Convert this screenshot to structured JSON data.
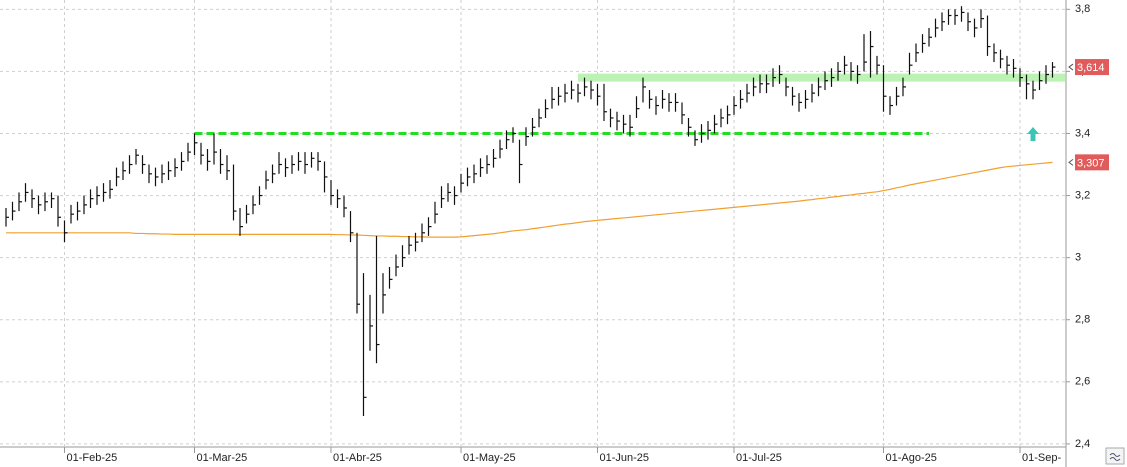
{
  "chart_data": {
    "type": "ohlc",
    "categories": [
      null,
      null,
      null,
      null,
      null,
      null,
      null,
      null,
      null,
      "01-Feb-25",
      null,
      null,
      null,
      null,
      null,
      null,
      null,
      null,
      null,
      null,
      null,
      null,
      null,
      null,
      null,
      null,
      null,
      null,
      null,
      "01-Mar-25",
      null,
      null,
      null,
      null,
      null,
      null,
      null,
      null,
      null,
      null,
      null,
      null,
      null,
      null,
      null,
      null,
      null,
      null,
      null,
      null,
      "01-Abr-25",
      null,
      null,
      null,
      null,
      null,
      null,
      null,
      null,
      null,
      null,
      null,
      null,
      null,
      null,
      null,
      null,
      null,
      null,
      null,
      "01-May-25",
      null,
      null,
      null,
      null,
      null,
      null,
      null,
      null,
      null,
      null,
      null,
      null,
      null,
      null,
      null,
      null,
      null,
      null,
      null,
      null,
      "01-Jun-25",
      null,
      null,
      null,
      null,
      null,
      null,
      null,
      null,
      null,
      null,
      null,
      null,
      null,
      null,
      null,
      null,
      null,
      null,
      null,
      null,
      "01-Jul-25",
      null,
      null,
      null,
      null,
      null,
      null,
      null,
      null,
      null,
      null,
      null,
      null,
      null,
      null,
      null,
      null,
      null,
      null,
      null,
      null,
      null,
      null,
      "01-Ago-25",
      null,
      null,
      null,
      null,
      null,
      null,
      null,
      null,
      null,
      null,
      null,
      null,
      null,
      null,
      null,
      null,
      null,
      null,
      null,
      null,
      "01-Sep-",
      null,
      null,
      null,
      null,
      null
    ],
    "close": [
      3.13,
      3.15,
      3.18,
      3.21,
      3.19,
      3.17,
      3.18,
      3.19,
      3.13,
      3.08,
      3.14,
      3.15,
      3.17,
      3.19,
      3.2,
      3.21,
      3.22,
      3.26,
      3.28,
      3.3,
      3.33,
      3.3,
      3.27,
      3.26,
      3.27,
      3.28,
      3.29,
      3.31,
      3.34,
      3.37,
      3.33,
      3.31,
      3.34,
      3.3,
      3.28,
      3.15,
      3.1,
      3.14,
      3.17,
      3.2,
      3.25,
      3.27,
      3.3,
      3.29,
      3.3,
      3.31,
      3.3,
      3.32,
      3.31,
      3.26,
      3.2,
      3.19,
      3.16,
      3.08,
      2.85,
      2.55,
      2.78,
      2.72,
      2.88,
      2.93,
      2.97,
      3.0,
      3.04,
      3.05,
      3.08,
      3.1,
      3.14,
      3.19,
      3.21,
      3.2,
      3.24,
      3.26,
      3.27,
      3.29,
      3.3,
      3.32,
      3.35,
      3.38,
      3.4,
      3.3,
      3.39,
      3.42,
      3.45,
      3.48,
      3.51,
      3.52,
      3.53,
      3.54,
      3.53,
      3.55,
      3.54,
      3.52,
      3.47,
      3.45,
      3.44,
      3.43,
      3.42,
      3.48,
      3.55,
      3.51,
      3.49,
      3.51,
      3.5,
      3.5,
      3.46,
      3.42,
      3.38,
      3.4,
      3.41,
      3.43,
      3.45,
      3.46,
      3.49,
      3.51,
      3.53,
      3.55,
      3.56,
      3.56,
      3.58,
      3.59,
      3.55,
      3.52,
      3.5,
      3.51,
      3.53,
      3.55,
      3.57,
      3.58,
      3.6,
      3.62,
      3.6,
      3.59,
      3.63,
      3.68,
      3.62,
      3.52,
      3.49,
      3.52,
      3.55,
      3.62,
      3.66,
      3.69,
      3.71,
      3.74,
      3.76,
      3.78,
      3.78,
      3.79,
      3.76,
      3.74,
      3.77,
      3.68,
      3.66,
      3.64,
      3.62,
      3.61,
      3.58,
      3.56,
      3.54,
      3.57,
      3.59,
      3.614
    ],
    "high": [
      3.16,
      3.18,
      3.21,
      3.24,
      3.22,
      3.2,
      3.21,
      3.21,
      3.2,
      3.12,
      3.17,
      3.18,
      3.2,
      3.22,
      3.23,
      3.24,
      3.25,
      3.29,
      3.31,
      3.33,
      3.35,
      3.33,
      3.3,
      3.29,
      3.3,
      3.31,
      3.32,
      3.34,
      3.37,
      3.4,
      3.37,
      3.35,
      3.4,
      3.35,
      3.33,
      3.3,
      3.16,
      3.17,
      3.2,
      3.23,
      3.28,
      3.3,
      3.34,
      3.32,
      3.33,
      3.34,
      3.34,
      3.34,
      3.34,
      3.31,
      3.25,
      3.22,
      3.2,
      3.15,
      3.08,
      2.95,
      2.88,
      3.07,
      2.95,
      2.97,
      3.01,
      3.04,
      3.07,
      3.08,
      3.11,
      3.13,
      3.18,
      3.23,
      3.24,
      3.23,
      3.27,
      3.29,
      3.3,
      3.32,
      3.33,
      3.35,
      3.38,
      3.41,
      3.42,
      3.38,
      3.42,
      3.45,
      3.48,
      3.51,
      3.55,
      3.55,
      3.56,
      3.57,
      3.56,
      3.58,
      3.57,
      3.56,
      3.56,
      3.48,
      3.47,
      3.46,
      3.46,
      3.52,
      3.58,
      3.54,
      3.52,
      3.54,
      3.53,
      3.53,
      3.5,
      3.45,
      3.41,
      3.43,
      3.44,
      3.46,
      3.48,
      3.49,
      3.52,
      3.54,
      3.56,
      3.58,
      3.59,
      3.59,
      3.61,
      3.62,
      3.58,
      3.55,
      3.53,
      3.54,
      3.56,
      3.58,
      3.6,
      3.61,
      3.63,
      3.65,
      3.63,
      3.62,
      3.72,
      3.73,
      3.65,
      3.62,
      3.52,
      3.55,
      3.58,
      3.66,
      3.69,
      3.72,
      3.74,
      3.77,
      3.79,
      3.8,
      3.8,
      3.81,
      3.79,
      3.77,
      3.8,
      3.78,
      3.69,
      3.67,
      3.65,
      3.64,
      3.61,
      3.59,
      3.57,
      3.6,
      3.62,
      3.63
    ],
    "low": [
      3.1,
      3.12,
      3.15,
      3.18,
      3.16,
      3.14,
      3.15,
      3.16,
      3.1,
      3.05,
      3.11,
      3.12,
      3.14,
      3.16,
      3.17,
      3.18,
      3.19,
      3.23,
      3.25,
      3.27,
      3.3,
      3.27,
      3.24,
      3.23,
      3.24,
      3.25,
      3.26,
      3.28,
      3.31,
      3.33,
      3.3,
      3.28,
      3.3,
      3.27,
      3.25,
      3.12,
      3.07,
      3.11,
      3.14,
      3.17,
      3.22,
      3.24,
      3.27,
      3.26,
      3.27,
      3.28,
      3.27,
      3.29,
      3.28,
      3.21,
      3.17,
      3.16,
      3.13,
      3.05,
      2.82,
      2.49,
      2.7,
      2.66,
      2.82,
      2.9,
      2.94,
      2.97,
      3.01,
      3.02,
      3.05,
      3.07,
      3.11,
      3.16,
      3.18,
      3.17,
      3.21,
      3.23,
      3.24,
      3.26,
      3.27,
      3.29,
      3.32,
      3.35,
      3.37,
      3.24,
      3.36,
      3.39,
      3.42,
      3.45,
      3.48,
      3.49,
      3.5,
      3.51,
      3.5,
      3.52,
      3.51,
      3.49,
      3.44,
      3.42,
      3.41,
      3.4,
      3.39,
      3.45,
      3.5,
      3.48,
      3.46,
      3.48,
      3.47,
      3.47,
      3.43,
      3.39,
      3.36,
      3.37,
      3.38,
      3.4,
      3.42,
      3.43,
      3.46,
      3.48,
      3.5,
      3.52,
      3.53,
      3.53,
      3.55,
      3.56,
      3.52,
      3.49,
      3.47,
      3.48,
      3.5,
      3.52,
      3.54,
      3.55,
      3.57,
      3.59,
      3.57,
      3.56,
      3.6,
      3.58,
      3.59,
      3.47,
      3.46,
      3.49,
      3.52,
      3.59,
      3.63,
      3.66,
      3.68,
      3.71,
      3.73,
      3.75,
      3.75,
      3.76,
      3.73,
      3.71,
      3.74,
      3.65,
      3.63,
      3.61,
      3.59,
      3.58,
      3.55,
      3.51,
      3.51,
      3.54,
      3.56,
      3.58
    ],
    "bar_color": "#111111",
    "moving_average": {
      "color": "#f0a030",
      "values": [
        3.08,
        3.08,
        3.08,
        3.08,
        3.08,
        3.08,
        3.08,
        3.08,
        3.08,
        3.08,
        3.08,
        3.08,
        3.08,
        3.08,
        3.08,
        3.08,
        3.08,
        3.08,
        3.08,
        3.08,
        3.078,
        3.078,
        3.077,
        3.077,
        3.076,
        3.076,
        3.075,
        3.075,
        3.075,
        3.075,
        3.075,
        3.075,
        3.075,
        3.075,
        3.075,
        3.075,
        3.075,
        3.075,
        3.075,
        3.075,
        3.075,
        3.075,
        3.075,
        3.075,
        3.075,
        3.075,
        3.075,
        3.075,
        3.075,
        3.075,
        3.075,
        3.074,
        3.074,
        3.073,
        3.073,
        3.072,
        3.071,
        3.07,
        3.07,
        3.069,
        3.069,
        3.068,
        3.068,
        3.067,
        3.067,
        3.066,
        3.066,
        3.066,
        3.066,
        3.066,
        3.067,
        3.069,
        3.071,
        3.073,
        3.075,
        3.077,
        3.08,
        3.083,
        3.086,
        3.088,
        3.09,
        3.093,
        3.096,
        3.099,
        3.102,
        3.105,
        3.108,
        3.11,
        3.113,
        3.116,
        3.118,
        3.12,
        3.122,
        3.124,
        3.126,
        3.128,
        3.13,
        3.132,
        3.134,
        3.136,
        3.138,
        3.14,
        3.142,
        3.144,
        3.146,
        3.148,
        3.15,
        3.152,
        3.154,
        3.156,
        3.158,
        3.16,
        3.162,
        3.164,
        3.166,
        3.168,
        3.17,
        3.172,
        3.174,
        3.176,
        3.178,
        3.18,
        3.182,
        3.185,
        3.187,
        3.19,
        3.192,
        3.195,
        3.197,
        3.2,
        3.202,
        3.205,
        3.207,
        3.21,
        3.212,
        3.216,
        3.22,
        3.225,
        3.229,
        3.234,
        3.238,
        3.242,
        3.246,
        3.25,
        3.254,
        3.258,
        3.262,
        3.266,
        3.27,
        3.274,
        3.278,
        3.282,
        3.286,
        3.29,
        3.293,
        3.295,
        3.297,
        3.299,
        3.301,
        3.303,
        3.305,
        3.307
      ]
    },
    "levels": [
      {
        "value": 3.4,
        "from": 29,
        "to": 142,
        "color": "#22dd22",
        "style": "dashed"
      },
      {
        "value": 3.58,
        "from": 88,
        "to": 161,
        "color": "#bdf2b5",
        "style": "solid"
      }
    ],
    "signals": [
      {
        "index": 158,
        "value": 3.395,
        "color": "#3cc4b4"
      }
    ],
    "last_labels": [
      {
        "value": 3.614,
        "label": "3,614",
        "color": "#e25b5b"
      },
      {
        "value": 3.307,
        "label": "3,307",
        "color": "#e25b5b"
      }
    ],
    "ylim": [
      2.39,
      3.83
    ],
    "yticks": [
      {
        "value": 2.4,
        "label": "2,4"
      },
      {
        "value": 2.6,
        "label": "2,6"
      },
      {
        "value": 2.8,
        "label": "2,8"
      },
      3,
      {
        "value": 3.2,
        "label": "3,2"
      },
      {
        "value": 3.4,
        "label": "3,4"
      },
      {
        "value": 3.6,
        "label": "3,6"
      },
      {
        "value": 3.8,
        "label": "3,8"
      }
    ],
    "grid": true
  }
}
